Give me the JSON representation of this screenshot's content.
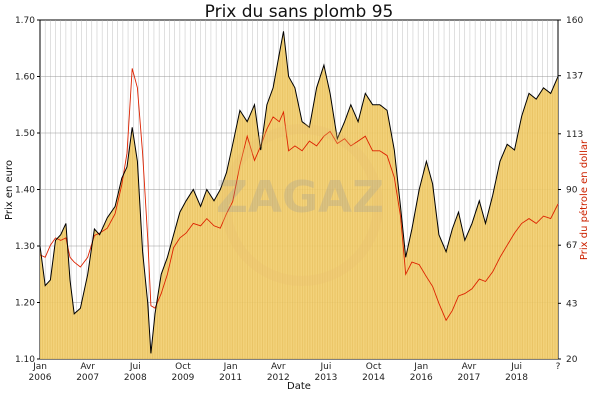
{
  "chart_data": {
    "type": "area",
    "title": "Prix du sans plomb 95",
    "xlabel": "Date",
    "ylabel": "Prix en euro",
    "y2label": "Prix du pétrole en dollar",
    "ylim": [
      1.1,
      1.7
    ],
    "y2lim": [
      20,
      160
    ],
    "yticks": [
      "1.10",
      "1.20",
      "1.30",
      "1.40",
      "1.50",
      "1.60",
      "1.70"
    ],
    "y2ticks": [
      "20",
      "43",
      "67",
      "90",
      "113",
      "137",
      "160"
    ],
    "xticks": [
      {
        "top": "Jan",
        "bottom": "2006",
        "t": 0
      },
      {
        "top": "Avr",
        "bottom": "2007",
        "t": 0.092
      },
      {
        "top": "Jui",
        "bottom": "2008",
        "t": 0.184
      },
      {
        "top": "Oct",
        "bottom": "2009",
        "t": 0.276
      },
      {
        "top": "Jan",
        "bottom": "2011",
        "t": 0.368
      },
      {
        "top": "Avr",
        "bottom": "2012",
        "t": 0.46
      },
      {
        "top": "Jui",
        "bottom": "2013",
        "t": 0.552
      },
      {
        "top": "Oct",
        "bottom": "2014",
        "t": 0.644
      },
      {
        "top": "Jan",
        "bottom": "2016",
        "t": 0.736
      },
      {
        "top": "Avr",
        "bottom": "2017",
        "t": 0.828
      },
      {
        "top": "Jui",
        "bottom": "2018",
        "t": 0.92
      },
      {
        "top": "?",
        "bottom": "",
        "t": 1.0
      }
    ],
    "watermark": "ZAGAZ",
    "grid": true,
    "series": [
      {
        "name": "",
        "axis": "left",
        "color": "#000000",
        "fill": "#f2cd6b",
        "points": [
          [
            0.0,
            1.3
          ],
          [
            0.01,
            1.23
          ],
          [
            0.02,
            1.24
          ],
          [
            0.03,
            1.31
          ],
          [
            0.04,
            1.32
          ],
          [
            0.05,
            1.34
          ],
          [
            0.058,
            1.24
          ],
          [
            0.066,
            1.18
          ],
          [
            0.078,
            1.19
          ],
          [
            0.092,
            1.25
          ],
          [
            0.105,
            1.33
          ],
          [
            0.115,
            1.32
          ],
          [
            0.13,
            1.35
          ],
          [
            0.145,
            1.37
          ],
          [
            0.158,
            1.42
          ],
          [
            0.168,
            1.44
          ],
          [
            0.178,
            1.51
          ],
          [
            0.188,
            1.45
          ],
          [
            0.198,
            1.29
          ],
          [
            0.208,
            1.2
          ],
          [
            0.214,
            1.11
          ],
          [
            0.222,
            1.18
          ],
          [
            0.234,
            1.25
          ],
          [
            0.246,
            1.28
          ],
          [
            0.258,
            1.32
          ],
          [
            0.27,
            1.36
          ],
          [
            0.282,
            1.38
          ],
          [
            0.296,
            1.4
          ],
          [
            0.31,
            1.37
          ],
          [
            0.322,
            1.4
          ],
          [
            0.336,
            1.38
          ],
          [
            0.348,
            1.4
          ],
          [
            0.36,
            1.43
          ],
          [
            0.372,
            1.48
          ],
          [
            0.386,
            1.54
          ],
          [
            0.4,
            1.52
          ],
          [
            0.414,
            1.55
          ],
          [
            0.426,
            1.47
          ],
          [
            0.438,
            1.55
          ],
          [
            0.45,
            1.58
          ],
          [
            0.462,
            1.64
          ],
          [
            0.47,
            1.68
          ],
          [
            0.48,
            1.6
          ],
          [
            0.492,
            1.58
          ],
          [
            0.506,
            1.52
          ],
          [
            0.52,
            1.51
          ],
          [
            0.534,
            1.58
          ],
          [
            0.548,
            1.62
          ],
          [
            0.56,
            1.57
          ],
          [
            0.574,
            1.49
          ],
          [
            0.588,
            1.52
          ],
          [
            0.6,
            1.55
          ],
          [
            0.614,
            1.52
          ],
          [
            0.628,
            1.57
          ],
          [
            0.642,
            1.55
          ],
          [
            0.656,
            1.55
          ],
          [
            0.67,
            1.54
          ],
          [
            0.684,
            1.47
          ],
          [
            0.696,
            1.37
          ],
          [
            0.706,
            1.28
          ],
          [
            0.718,
            1.33
          ],
          [
            0.732,
            1.4
          ],
          [
            0.746,
            1.45
          ],
          [
            0.758,
            1.41
          ],
          [
            0.77,
            1.32
          ],
          [
            0.784,
            1.29
          ],
          [
            0.796,
            1.33
          ],
          [
            0.808,
            1.36
          ],
          [
            0.82,
            1.31
          ],
          [
            0.834,
            1.34
          ],
          [
            0.848,
            1.38
          ],
          [
            0.86,
            1.34
          ],
          [
            0.874,
            1.39
          ],
          [
            0.888,
            1.45
          ],
          [
            0.902,
            1.48
          ],
          [
            0.916,
            1.47
          ],
          [
            0.93,
            1.53
          ],
          [
            0.944,
            1.57
          ],
          [
            0.958,
            1.56
          ],
          [
            0.972,
            1.58
          ],
          [
            0.986,
            1.57
          ],
          [
            1.0,
            1.6
          ]
        ]
      },
      {
        "name": "",
        "axis": "right",
        "color": "#dd2200",
        "points": [
          [
            0.0,
            63
          ],
          [
            0.01,
            62
          ],
          [
            0.02,
            67
          ],
          [
            0.03,
            70
          ],
          [
            0.04,
            69
          ],
          [
            0.05,
            70
          ],
          [
            0.058,
            62
          ],
          [
            0.066,
            60
          ],
          [
            0.078,
            58
          ],
          [
            0.092,
            62
          ],
          [
            0.105,
            71
          ],
          [
            0.115,
            72
          ],
          [
            0.13,
            74
          ],
          [
            0.145,
            80
          ],
          [
            0.158,
            92
          ],
          [
            0.168,
            105
          ],
          [
            0.178,
            140
          ],
          [
            0.188,
            132
          ],
          [
            0.198,
            105
          ],
          [
            0.208,
            70
          ],
          [
            0.214,
            42
          ],
          [
            0.222,
            41
          ],
          [
            0.234,
            47
          ],
          [
            0.246,
            55
          ],
          [
            0.258,
            66
          ],
          [
            0.27,
            70
          ],
          [
            0.282,
            72
          ],
          [
            0.296,
            76
          ],
          [
            0.31,
            75
          ],
          [
            0.322,
            78
          ],
          [
            0.336,
            75
          ],
          [
            0.348,
            74
          ],
          [
            0.36,
            80
          ],
          [
            0.372,
            85
          ],
          [
            0.386,
            100
          ],
          [
            0.4,
            112
          ],
          [
            0.414,
            102
          ],
          [
            0.426,
            108
          ],
          [
            0.438,
            115
          ],
          [
            0.45,
            120
          ],
          [
            0.462,
            118
          ],
          [
            0.47,
            122
          ],
          [
            0.48,
            106
          ],
          [
            0.492,
            108
          ],
          [
            0.506,
            106
          ],
          [
            0.52,
            110
          ],
          [
            0.534,
            108
          ],
          [
            0.548,
            112
          ],
          [
            0.56,
            114
          ],
          [
            0.574,
            109
          ],
          [
            0.588,
            111
          ],
          [
            0.6,
            108
          ],
          [
            0.614,
            110
          ],
          [
            0.628,
            112
          ],
          [
            0.642,
            106
          ],
          [
            0.656,
            106
          ],
          [
            0.67,
            104
          ],
          [
            0.684,
            95
          ],
          [
            0.696,
            79
          ],
          [
            0.706,
            55
          ],
          [
            0.718,
            60
          ],
          [
            0.732,
            59
          ],
          [
            0.746,
            54
          ],
          [
            0.758,
            50
          ],
          [
            0.77,
            43
          ],
          [
            0.784,
            36
          ],
          [
            0.796,
            40
          ],
          [
            0.808,
            46
          ],
          [
            0.82,
            47
          ],
          [
            0.834,
            49
          ],
          [
            0.848,
            53
          ],
          [
            0.86,
            52
          ],
          [
            0.874,
            56
          ],
          [
            0.888,
            62
          ],
          [
            0.902,
            67
          ],
          [
            0.916,
            72
          ],
          [
            0.93,
            76
          ],
          [
            0.944,
            78
          ],
          [
            0.958,
            76
          ],
          [
            0.972,
            79
          ],
          [
            0.986,
            78
          ],
          [
            1.0,
            84
          ]
        ]
      }
    ],
    "colors": {
      "background": "#ffffff",
      "grid": "#b0b0b0",
      "area_fill": "#f2cd6b",
      "price_line": "#000000",
      "oil_line": "#dd2200",
      "right_axis_text": "#cc2200",
      "watermark": "#c8c8c8"
    }
  }
}
